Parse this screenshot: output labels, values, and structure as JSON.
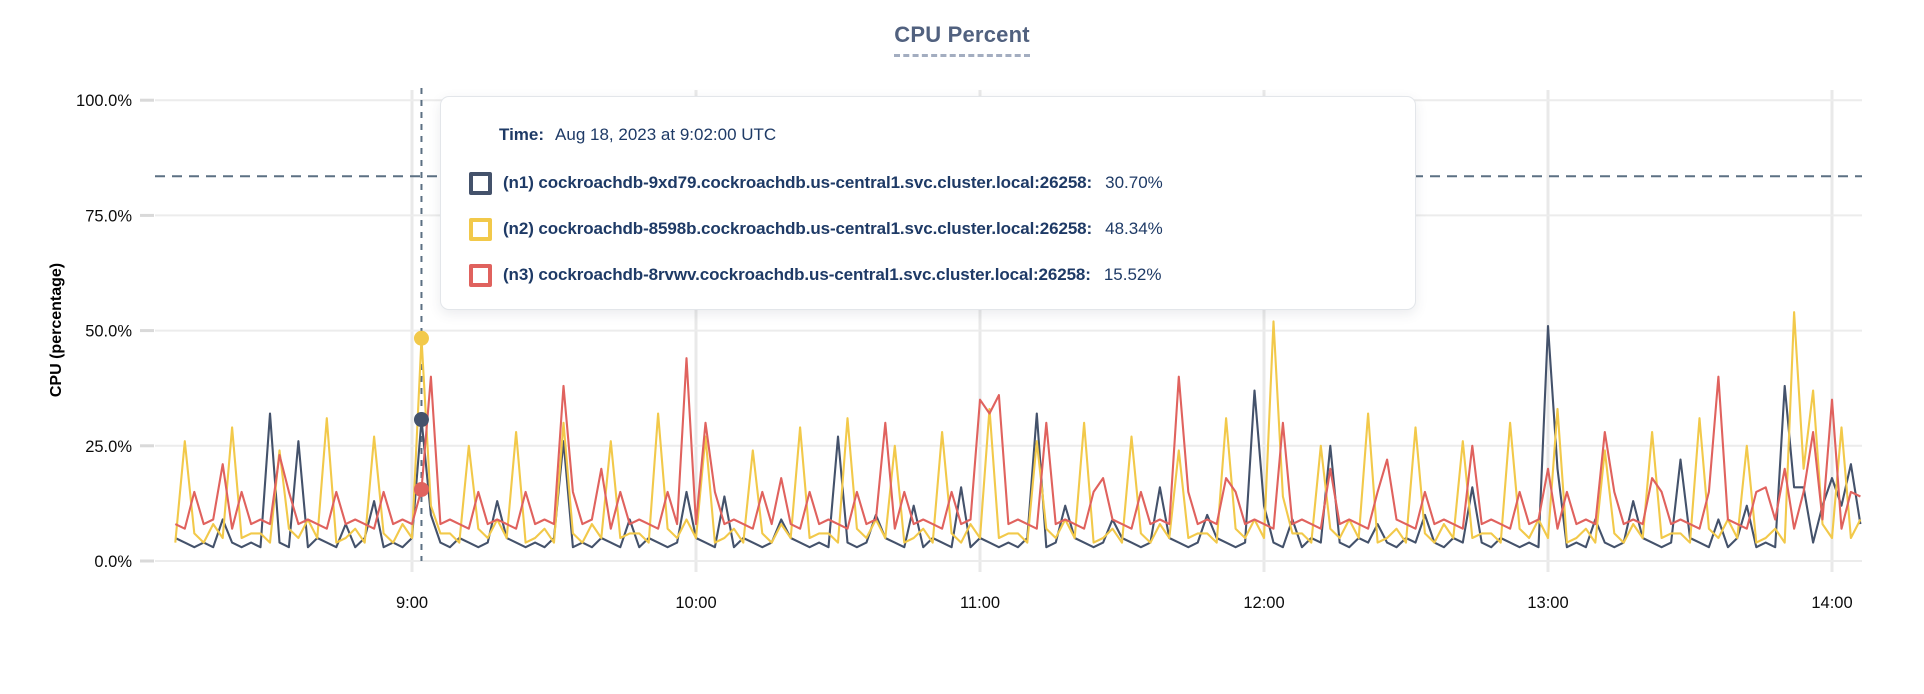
{
  "title": "CPU Percent",
  "colors": {
    "title": "#51617f",
    "grid": "#ececec",
    "grid_vertical": "#e9e9e9",
    "tick_dash": "#d9d9d9",
    "crosshair": "#5c7083",
    "axis_text": "#0c0c0c",
    "tooltip_text": "#1e3a66",
    "series_n1": "#44526b",
    "series_n2": "#f2c94a",
    "series_n3": "#e0625e"
  },
  "tooltip": {
    "time_label": "Time:",
    "time_value": "Aug 18, 2023 at 9:02:00 UTC",
    "series": [
      {
        "name": "n1",
        "color": "#44526b",
        "label": "(n1) cockroachdb-9xd79.cockroachdb.us-central1.svc.cluster.local:26258:",
        "value": "30.70%"
      },
      {
        "name": "n2",
        "color": "#f2c94a",
        "label": "(n2) cockroachdb-8598b.cockroachdb.us-central1.svc.cluster.local:26258:",
        "value": "48.34%"
      },
      {
        "name": "n3",
        "color": "#e0625e",
        "label": "(n3) cockroachdb-8rvwv.cockroachdb.us-central1.svc.cluster.local:26258:",
        "value": "15.52%"
      }
    ]
  },
  "chart_data": {
    "type": "line",
    "title": "CPU Percent",
    "xlabel": "",
    "ylabel": "CPU (percentage)",
    "ylim": [
      0,
      100
    ],
    "grid": true,
    "legend_position": "tooltip-overlay",
    "y_ticks": [
      {
        "value": 0,
        "label": "0.0%"
      },
      {
        "value": 25,
        "label": "25.0%"
      },
      {
        "value": 50,
        "label": "50.0%"
      },
      {
        "value": 75,
        "label": "75.0%"
      },
      {
        "value": 100,
        "label": "100.0%"
      }
    ],
    "x_ticks": [
      {
        "minute": 540,
        "label": "9:00"
      },
      {
        "minute": 600,
        "label": "10:00"
      },
      {
        "minute": 660,
        "label": "11:00"
      },
      {
        "minute": 720,
        "label": "12:00"
      },
      {
        "minute": 780,
        "label": "13:00"
      },
      {
        "minute": 840,
        "label": "14:00"
      }
    ],
    "x_start_minute": 490,
    "x_step_minutes": 2,
    "threshold_percent": 83.5,
    "hover": {
      "minute": 542,
      "index": 26,
      "time_text": "Aug 18, 2023 at 9:02:00 UTC"
    },
    "series": [
      {
        "name": "n1",
        "color": "#44526b",
        "hover_value": 30.7,
        "values": [
          5,
          4,
          3,
          4,
          3,
          9,
          4,
          3,
          4,
          3,
          32,
          4,
          3,
          26,
          3,
          5,
          4,
          3,
          8,
          3,
          5,
          13,
          3,
          4,
          3,
          5,
          30.7,
          10,
          4,
          3,
          5,
          4,
          3,
          4,
          13,
          5,
          4,
          3,
          4,
          3,
          5,
          26,
          3,
          4,
          3,
          5,
          4,
          3,
          9,
          3,
          5,
          4,
          3,
          4,
          15,
          5,
          4,
          3,
          14,
          3,
          5,
          4,
          3,
          4,
          9,
          5,
          4,
          3,
          4,
          3,
          27,
          4,
          3,
          4,
          10,
          5,
          4,
          3,
          12,
          3,
          5,
          4,
          3,
          16,
          3,
          5,
          4,
          3,
          4,
          3,
          5,
          32,
          3,
          4,
          12,
          5,
          4,
          3,
          4,
          9,
          5,
          4,
          3,
          4,
          16,
          5,
          4,
          3,
          4,
          10,
          5,
          4,
          3,
          4,
          37,
          12,
          4,
          3,
          9,
          3,
          5,
          4,
          25,
          4,
          3,
          5,
          4,
          8,
          4,
          3,
          5,
          4,
          10,
          4,
          3,
          5,
          4,
          16,
          4,
          3,
          5,
          4,
          3,
          4,
          3,
          51,
          20,
          3,
          4,
          3,
          9,
          4,
          3,
          4,
          13,
          5,
          4,
          3,
          4,
          22,
          5,
          4,
          3,
          9,
          3,
          5,
          12,
          3,
          4,
          3,
          38,
          16,
          16,
          4,
          12,
          18,
          12,
          21,
          8
        ]
      },
      {
        "name": "n2",
        "color": "#f2c94a",
        "hover_value": 48.34,
        "values": [
          4,
          26,
          6,
          4,
          8,
          5,
          29,
          5,
          6,
          6,
          4,
          24,
          7,
          5,
          9,
          5,
          31,
          4,
          5,
          7,
          4,
          27,
          6,
          4,
          8,
          5,
          48.34,
          12,
          6,
          6,
          4,
          25,
          7,
          5,
          9,
          5,
          28,
          4,
          5,
          7,
          4,
          30,
          6,
          4,
          8,
          5,
          26,
          5,
          6,
          6,
          4,
          32,
          7,
          5,
          9,
          5,
          27,
          4,
          5,
          7,
          4,
          24,
          6,
          4,
          8,
          5,
          29,
          5,
          6,
          6,
          4,
          31,
          7,
          5,
          9,
          5,
          25,
          4,
          5,
          7,
          4,
          28,
          6,
          4,
          8,
          5,
          33,
          5,
          6,
          6,
          4,
          26,
          7,
          5,
          9,
          5,
          30,
          4,
          5,
          7,
          4,
          27,
          6,
          4,
          8,
          5,
          24,
          5,
          6,
          6,
          4,
          31,
          7,
          5,
          9,
          5,
          52,
          14,
          6,
          6,
          4,
          25,
          7,
          5,
          9,
          5,
          32,
          4,
          5,
          7,
          4,
          29,
          6,
          4,
          8,
          5,
          26,
          5,
          6,
          6,
          4,
          30,
          7,
          5,
          9,
          5,
          33,
          4,
          5,
          7,
          4,
          24,
          6,
          4,
          8,
          5,
          28,
          5,
          6,
          6,
          4,
          31,
          7,
          5,
          9,
          5,
          25,
          4,
          5,
          7,
          4,
          54,
          20,
          37,
          8,
          5,
          29,
          5,
          9
        ]
      },
      {
        "name": "n3",
        "color": "#e0625e",
        "hover_value": 15.52,
        "values": [
          8,
          7,
          15,
          8,
          9,
          21,
          7,
          15,
          8,
          9,
          8,
          23,
          15,
          8,
          9,
          8,
          7,
          15,
          8,
          9,
          8,
          7,
          15,
          8,
          9,
          8,
          15.52,
          40,
          8,
          9,
          8,
          7,
          15,
          8,
          9,
          8,
          7,
          15,
          8,
          9,
          8,
          38,
          15,
          8,
          9,
          20,
          7,
          15,
          8,
          9,
          8,
          7,
          15,
          8,
          44,
          8,
          30,
          15,
          8,
          9,
          8,
          7,
          15,
          8,
          18,
          8,
          7,
          15,
          8,
          9,
          8,
          7,
          15,
          8,
          9,
          30,
          7,
          15,
          8,
          9,
          8,
          7,
          15,
          8,
          9,
          35,
          32,
          36,
          8,
          9,
          8,
          7,
          30,
          8,
          9,
          8,
          7,
          15,
          18,
          9,
          8,
          7,
          15,
          8,
          9,
          8,
          40,
          15,
          8,
          9,
          8,
          18,
          15,
          8,
          9,
          8,
          7,
          30,
          8,
          9,
          8,
          7,
          20,
          8,
          9,
          8,
          7,
          15,
          22,
          9,
          8,
          7,
          15,
          8,
          9,
          8,
          7,
          25,
          8,
          9,
          8,
          7,
          15,
          8,
          9,
          20,
          7,
          15,
          8,
          9,
          8,
          28,
          15,
          8,
          9,
          8,
          18,
          15,
          8,
          9,
          8,
          7,
          15,
          40,
          9,
          8,
          7,
          15,
          16,
          9,
          20,
          7,
          15,
          28,
          9,
          35,
          7,
          15,
          14
        ]
      }
    ]
  }
}
